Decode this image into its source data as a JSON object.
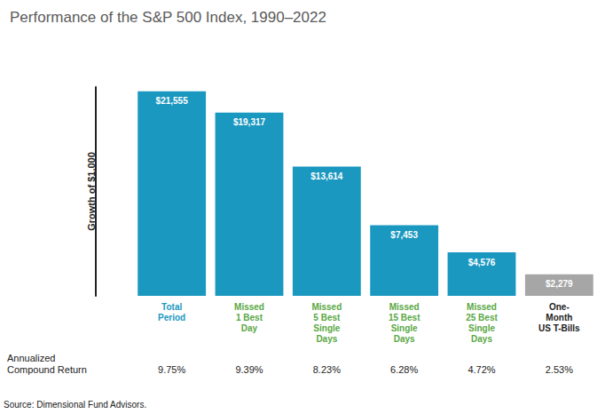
{
  "chart_data": {
    "type": "bar",
    "title": "Performance of the S&P 500 Index, 1990–2022",
    "ylabel": "Growth of $1,000",
    "categories": [
      "Total\nPeriod",
      "Missed\n1 Best\nDay",
      "Missed\n5 Best\nSingle\nDays",
      "Missed\n15 Best\nSingle\nDays",
      "Missed\n25 Best\nSingle\nDays",
      "One-\nMonth\nUS T-Bills"
    ],
    "values": [
      21555,
      19317,
      13614,
      7453,
      4576,
      2279
    ],
    "value_labels": [
      "$21,555",
      "$19,317",
      "$13,614",
      "$7,453",
      "$4,576",
      "$2,279"
    ],
    "colors": [
      "#1b98c0",
      "#1b98c0",
      "#1b98c0",
      "#1b98c0",
      "#1b98c0",
      "#a6a6a6"
    ],
    "ylim": [
      0,
      22000
    ],
    "data_labels": true,
    "tick_labels": "x",
    "grid": false,
    "row_title": "Annualized\nCompound Return",
    "row_values": [
      "9.75%",
      "9.39%",
      "8.23%",
      "6.28%",
      "4.72%",
      "2.53%"
    ],
    "source": "Source: Dimensional Fund Advisors."
  }
}
